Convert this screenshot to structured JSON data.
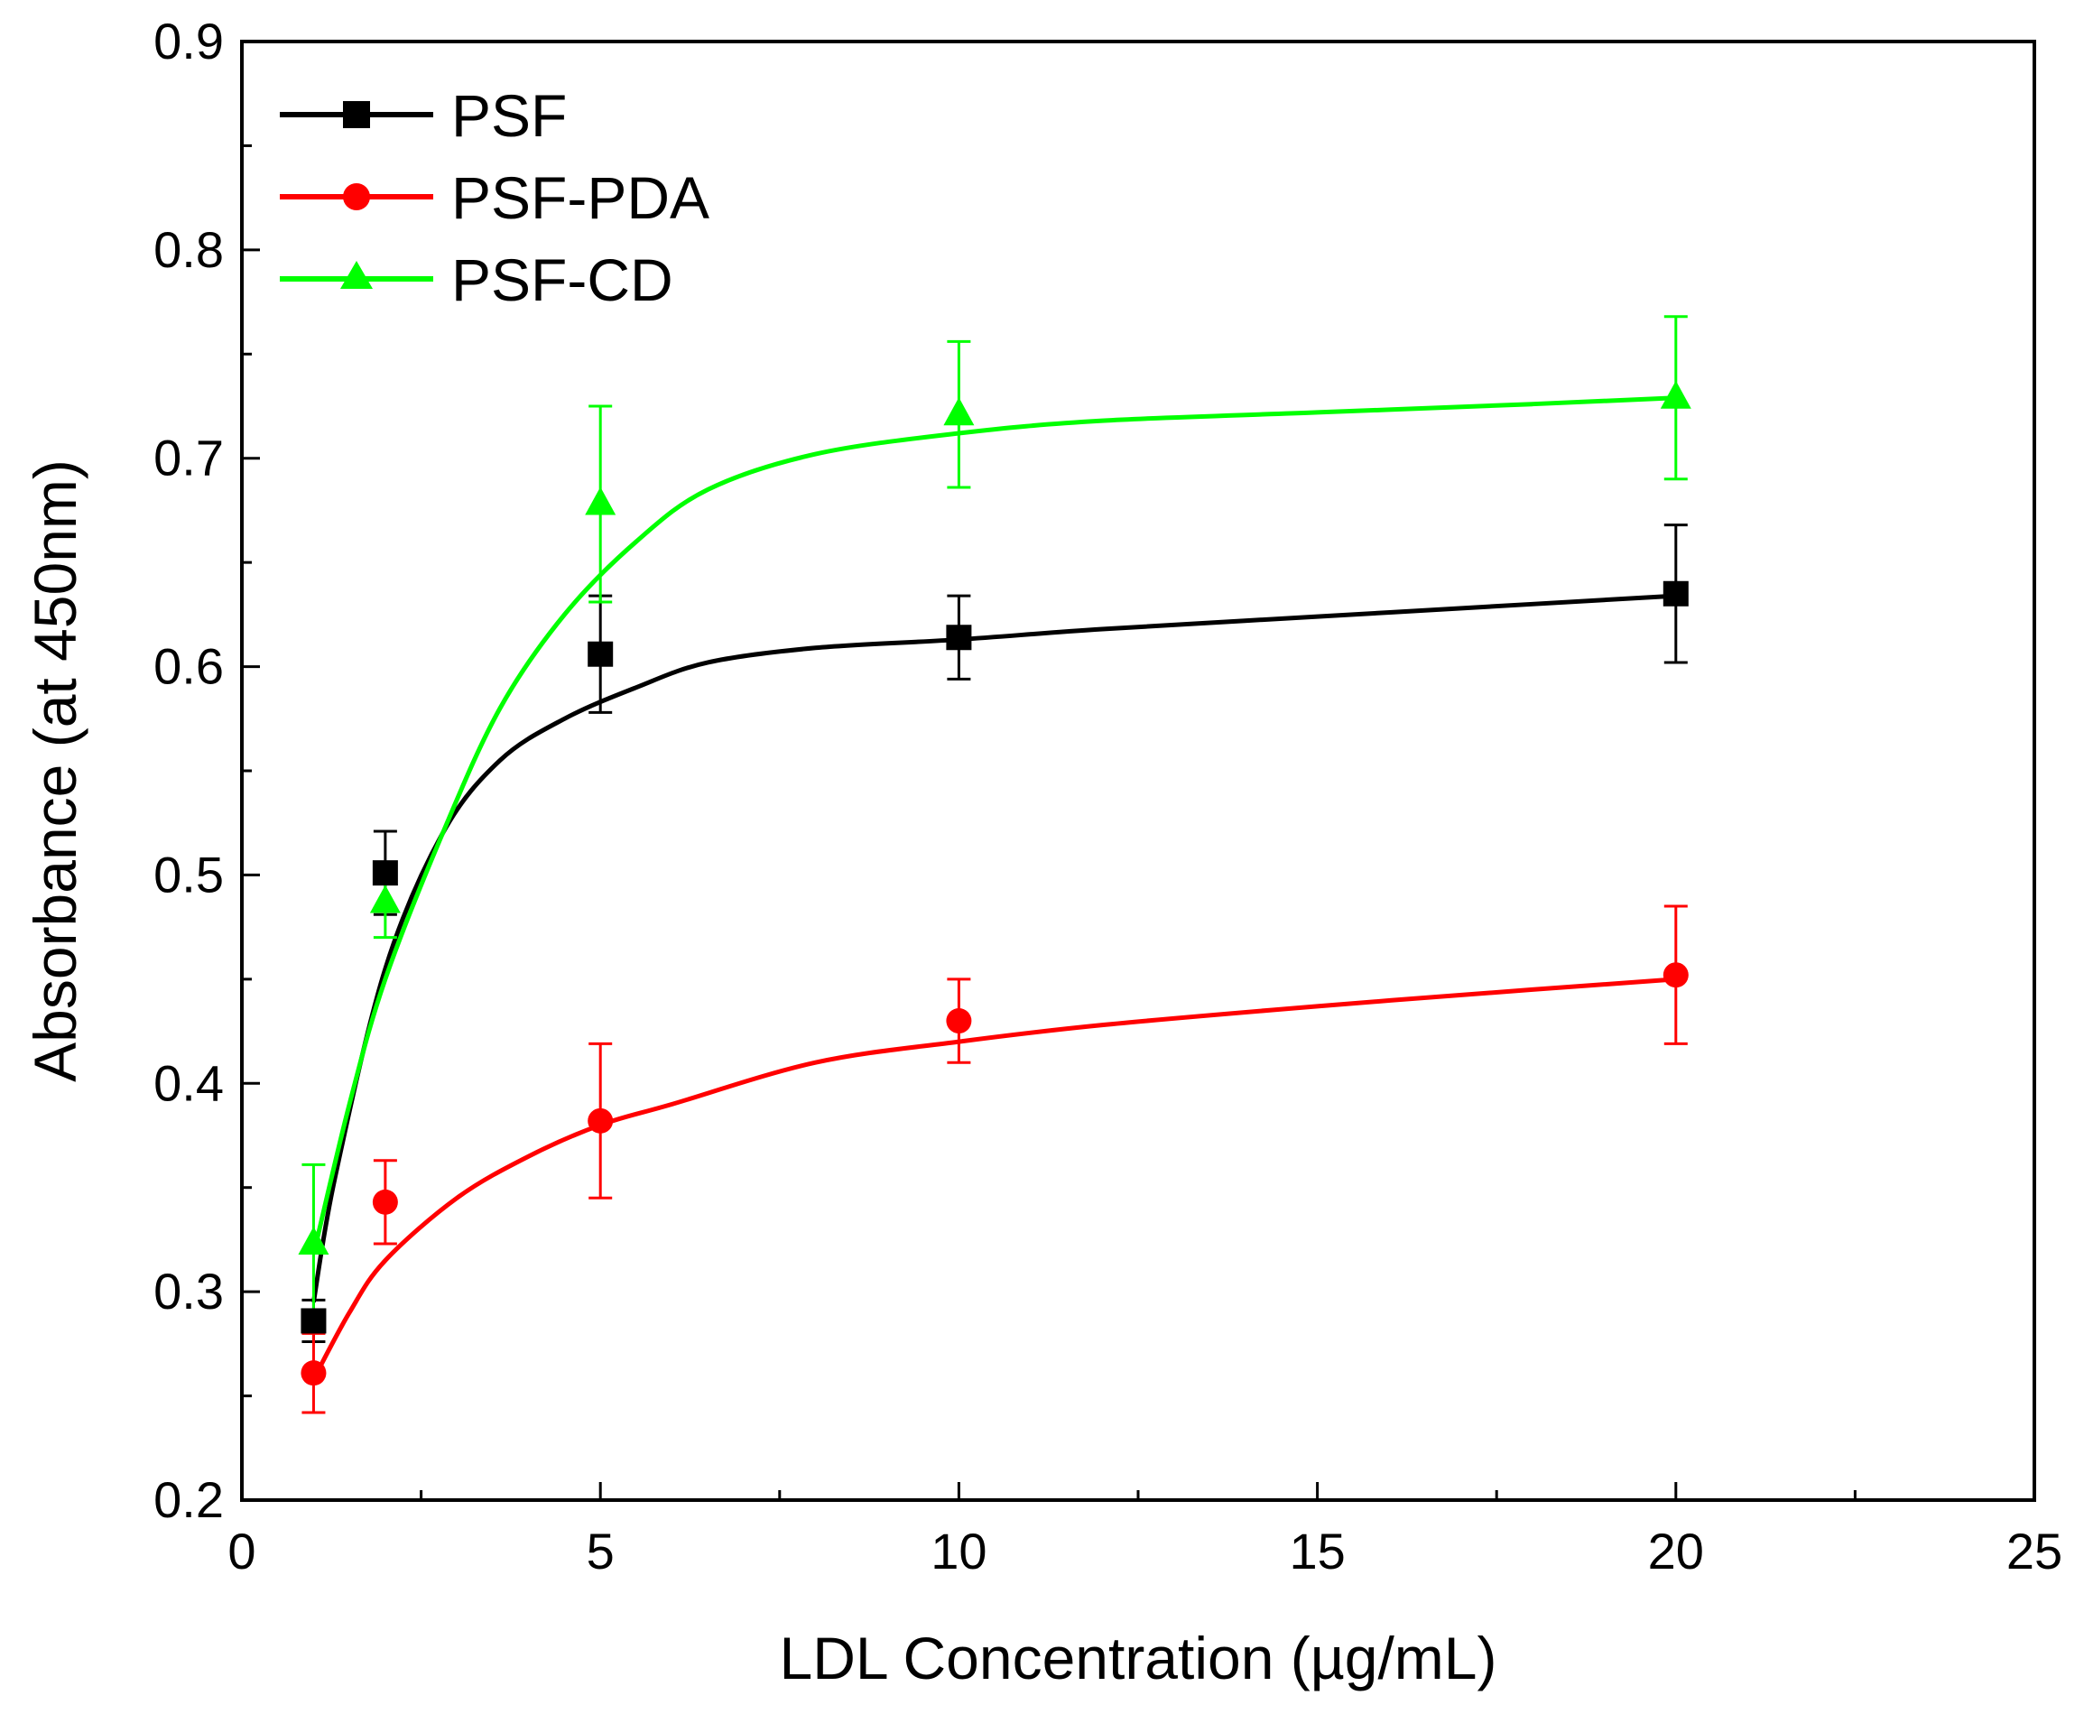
{
  "chart_data": {
    "type": "line",
    "title": "",
    "xlabel": "LDL Concentration (µg/mL)",
    "ylabel": "Absorbance (at 450nm)",
    "xlim": [
      0,
      25
    ],
    "ylim": [
      0.2,
      0.9
    ],
    "xticks": [
      0,
      5,
      10,
      15,
      20,
      25
    ],
    "xtick_labels": [
      "0",
      "5",
      "10",
      "15",
      "20",
      "25"
    ],
    "yticks": [
      0.2,
      0.3,
      0.4,
      0.5,
      0.6,
      0.7,
      0.8,
      0.9
    ],
    "ytick_labels": [
      "0.2",
      "0.3",
      "0.4",
      "0.5",
      "0.6",
      "0.7",
      "0.8",
      "0.9"
    ],
    "legend_position": "top-left",
    "grid": false,
    "x": [
      1,
      2,
      5,
      10,
      20
    ],
    "series": [
      {
        "name": "PSF",
        "color": "#000000",
        "marker": "square",
        "values": [
          0.286,
          0.501,
          0.606,
          0.614,
          0.635
        ],
        "errors": [
          0.01,
          0.02,
          0.028,
          0.02,
          0.033
        ],
        "fit_curve": [
          [
            1.0,
            0.295
          ],
          [
            1.3,
            0.355
          ],
          [
            2.0,
            0.455
          ],
          [
            2.8,
            0.52
          ],
          [
            3.6,
            0.555
          ],
          [
            4.5,
            0.575
          ],
          [
            5.5,
            0.59
          ],
          [
            6.5,
            0.602
          ],
          [
            8,
            0.609
          ],
          [
            10,
            0.613
          ],
          [
            12,
            0.618
          ],
          [
            15,
            0.624
          ],
          [
            18,
            0.63
          ],
          [
            20,
            0.634
          ]
        ]
      },
      {
        "name": "PSF-PDA",
        "color": "#ff0000",
        "marker": "circle",
        "values": [
          0.261,
          0.343,
          0.382,
          0.43,
          0.452
        ],
        "errors": [
          0.019,
          0.02,
          0.037,
          0.02,
          0.033
        ],
        "fit_curve": [
          [
            1.0,
            0.258
          ],
          [
            1.5,
            0.29
          ],
          [
            2.0,
            0.315
          ],
          [
            3.0,
            0.345
          ],
          [
            4.0,
            0.365
          ],
          [
            5.0,
            0.38
          ],
          [
            6.0,
            0.39
          ],
          [
            8.0,
            0.41
          ],
          [
            10,
            0.42
          ],
          [
            12,
            0.428
          ],
          [
            15,
            0.437
          ],
          [
            18,
            0.445
          ],
          [
            20,
            0.45
          ]
        ]
      },
      {
        "name": "PSF-CD",
        "color": "#00ff00",
        "marker": "triangle",
        "values": [
          0.323,
          0.487,
          0.678,
          0.721,
          0.729
        ],
        "errors": [
          0.038,
          0.017,
          0.047,
          0.035,
          0.039
        ],
        "fit_curve": [
          [
            1.0,
            0.318
          ],
          [
            1.5,
            0.39
          ],
          [
            2.0,
            0.45
          ],
          [
            2.8,
            0.52
          ],
          [
            3.6,
            0.58
          ],
          [
            4.5,
            0.625
          ],
          [
            5.5,
            0.66
          ],
          [
            6.5,
            0.685
          ],
          [
            8,
            0.702
          ],
          [
            10,
            0.712
          ],
          [
            12,
            0.718
          ],
          [
            15,
            0.722
          ],
          [
            18,
            0.726
          ],
          [
            20,
            0.729
          ]
        ]
      }
    ]
  }
}
